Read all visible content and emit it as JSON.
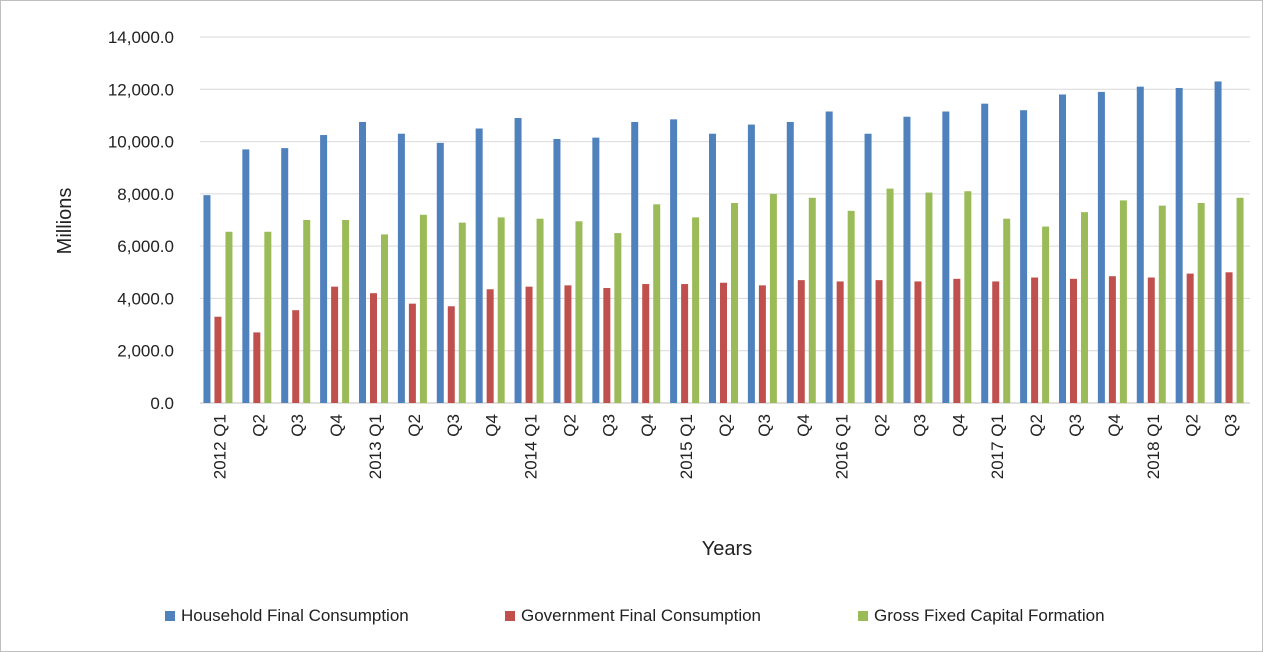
{
  "colors": {
    "household": "#4f81bd",
    "government": "#c0504d",
    "gfcf": "#9bbb59",
    "grid": "#d9d9d9",
    "frame": "#bfbfbf"
  },
  "chart_data": {
    "type": "bar",
    "title": "",
    "xlabel": "Years",
    "ylabel": "Millions",
    "ylim": [
      0,
      14000
    ],
    "yticks": [
      "0.0",
      "2,000.0",
      "4,000.0",
      "6,000.0",
      "8,000.0",
      "10,000.0",
      "12,000.0",
      "14,000.0"
    ],
    "grid": "horizontal",
    "legend_position": "bottom",
    "categories": [
      "2012 Q1",
      "Q2",
      "Q3",
      "Q4",
      "2013 Q1",
      "Q2",
      "Q3",
      "Q4",
      "2014 Q1",
      "Q2",
      "Q3",
      "Q4",
      "2015 Q1",
      "Q2",
      "Q3",
      "Q4",
      "2016 Q1",
      "Q2",
      "Q3",
      "Q4",
      "2017 Q1",
      "Q2",
      "Q3",
      "Q4",
      "2018 Q1",
      "Q2",
      "Q3"
    ],
    "series": [
      {
        "name": "Household Final Consumption",
        "color_key": "household",
        "values": [
          7950,
          9700,
          9750,
          10250,
          10750,
          10300,
          9950,
          10500,
          10900,
          10100,
          10150,
          10750,
          10850,
          10300,
          10650,
          10750,
          11150,
          10300,
          10950,
          11150,
          11450,
          11200,
          11800,
          11900,
          12100,
          12050,
          12300
        ]
      },
      {
        "name": "Government Final Consumption",
        "color_key": "government",
        "values": [
          3300,
          2700,
          3550,
          4450,
          4200,
          3800,
          3700,
          4350,
          4450,
          4500,
          4400,
          4550,
          4550,
          4600,
          4500,
          4700,
          4650,
          4700,
          4650,
          4750,
          4650,
          4800,
          4750,
          4850,
          4800,
          4950,
          5000
        ]
      },
      {
        "name": "Gross Fixed Capital Formation",
        "color_key": "gfcf",
        "values": [
          6550,
          6550,
          7000,
          7000,
          6450,
          7200,
          6900,
          7100,
          7050,
          6950,
          6500,
          7600,
          7100,
          7650,
          8000,
          7850,
          7350,
          8200,
          8050,
          8100,
          7050,
          6750,
          7300,
          7750,
          7550,
          7650,
          7850
        ]
      }
    ]
  }
}
